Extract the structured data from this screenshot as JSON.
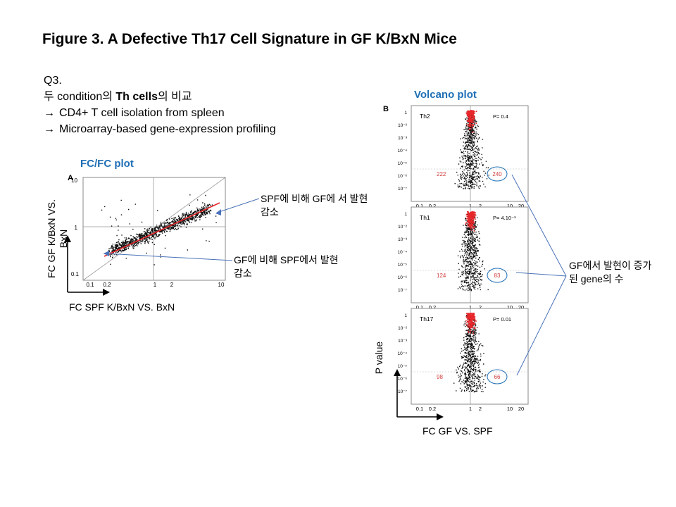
{
  "title": "Figure 3. A Defective Th17 Cell Signature in GF K/BxN Mice",
  "question": {
    "label": "Q3.",
    "line1_prefix": "두 condition의 ",
    "line1_bold": "Th cells",
    "line1_suffix": "의 비교",
    "step1": "CD4+ T cell isolation from spleen",
    "step2": "Microarray-based gene-expression profiling",
    "arrow_glyph": "→"
  },
  "fcfc": {
    "heading": "FC/FC plot",
    "panel_letter": "A",
    "y_label_line1": "FC GF K/BxN VS.",
    "y_label_line2": "BxN",
    "x_label": "FC SPF K/BxN VS. BxN",
    "x_ticks": [
      "0.1",
      "0.2",
      "1",
      "2",
      "10"
    ],
    "y_ticks": [
      "10",
      "1",
      "0.1"
    ],
    "annotation_upper": "SPF에 비해 GF에 서 발현 감소",
    "annotation_lower": "GF에 비해 SPF에서 발현 감소"
  },
  "volcano": {
    "heading": "Volcano plot",
    "panel_letter": "B",
    "y_label": "P value",
    "x_label": "FC GF VS. SPF",
    "x_ticks": [
      "0.1",
      "0.2",
      "1",
      "2",
      "10",
      "20"
    ],
    "y_ticks": [
      "1",
      "10⁻²",
      "10⁻³",
      "10⁻⁴",
      "10⁻⁵",
      "10⁻⁶",
      "10⁻⁷"
    ],
    "panels": [
      {
        "name": "Th2",
        "p": "P= 0.4",
        "left_count": "222",
        "right_count": "240"
      },
      {
        "name": "Th1",
        "p": "P= 4.10⁻³",
        "left_count": "124",
        "right_count": "83"
      },
      {
        "name": "Th17",
        "p": "P= 0.01",
        "left_count": "98",
        "right_count": "66"
      }
    ],
    "annotation": "GF에서 발현이 증가된 gene의 수"
  },
  "colors": {
    "accent_blue": "#1f6fb5",
    "highlight_red": "#e8262a",
    "count_red": "#d04040",
    "points": "#111111"
  }
}
